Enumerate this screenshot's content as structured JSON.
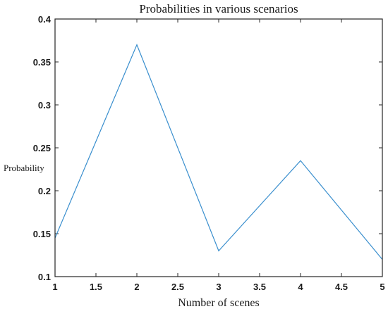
{
  "chart_data": {
    "type": "line",
    "title": "Probabilities in various scenarios",
    "xlabel": "Number of scenes",
    "ylabel": "Probability",
    "x": [
      1,
      2,
      3,
      4,
      5
    ],
    "series": [
      {
        "values": [
          0.145,
          0.37,
          0.13,
          0.235,
          0.12
        ]
      }
    ],
    "xlim": [
      1,
      5
    ],
    "ylim": [
      0.1,
      0.4
    ],
    "xticks": [
      1,
      1.5,
      2,
      2.5,
      3,
      3.5,
      4,
      4.5,
      5
    ],
    "xtick_labels": [
      "1",
      "1.5",
      "2",
      "2.5",
      "3",
      "3.5",
      "4",
      "4.5",
      "5"
    ],
    "yticks": [
      0.1,
      0.15,
      0.2,
      0.25,
      0.3,
      0.35,
      0.4
    ],
    "ytick_labels": [
      "0.1",
      "0.15",
      "0.2",
      "0.25",
      "0.3",
      "0.35",
      "0.4"
    ],
    "grid": false,
    "line_color": "#3a8fce",
    "axis_color": "#262626"
  }
}
